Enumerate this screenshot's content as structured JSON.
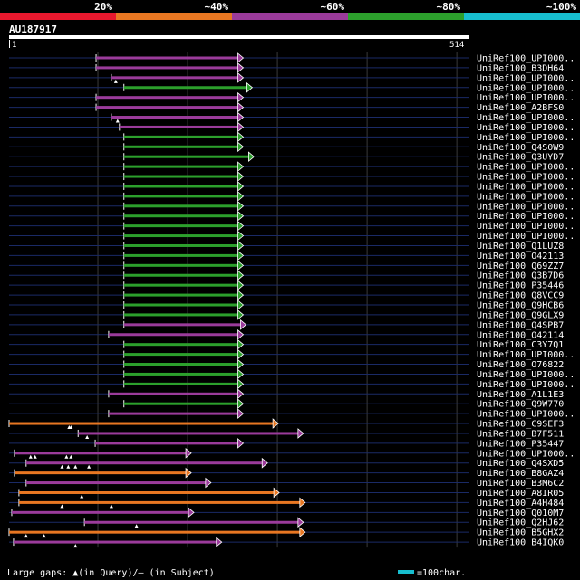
{
  "legend": {
    "bands": [
      {
        "label": "20%",
        "color": "#e8182e"
      },
      {
        "label": "~40%",
        "color": "#e87722"
      },
      {
        "label": "~60%",
        "color": "#9b3b9b"
      },
      {
        "label": "~80%",
        "color": "#2ca02c"
      },
      {
        "label": "~100%",
        "color": "#17becf"
      }
    ]
  },
  "query": {
    "name": "AU187917",
    "start_label": "1",
    "end_label": "514",
    "length": 514
  },
  "footer": {
    "gaps_text": "Large gaps: ▲(in Query)/– (in Subject)",
    "scale_text": "=100char.",
    "scale_color": "#17becf"
  },
  "colors": {
    "magenta": "#9b3b9b",
    "green": "#2ca02c",
    "orange": "#e87722",
    "track": "#1a2a66",
    "grid": "#3a3a3a"
  },
  "hits": [
    {
      "label": "UniRef100_UPI000..",
      "start": 98,
      "end": 256,
      "color": "magenta",
      "tri": []
    },
    {
      "label": "UniRef100_B3DH64",
      "start": 98,
      "end": 256,
      "color": "magenta",
      "tri": []
    },
    {
      "label": "UniRef100_UPI000..",
      "start": 115,
      "end": 256,
      "color": "magenta",
      "tri": [
        120
      ]
    },
    {
      "label": "UniRef100_UPI000..",
      "start": 129,
      "end": 266,
      "color": "green",
      "tri": []
    },
    {
      "label": "UniRef100_UPI000..",
      "start": 98,
      "end": 256,
      "color": "magenta",
      "tri": []
    },
    {
      "label": "UniRef100_A2BFS0",
      "start": 98,
      "end": 256,
      "color": "magenta",
      "tri": []
    },
    {
      "label": "UniRef100_UPI000..",
      "start": 115,
      "end": 256,
      "color": "magenta",
      "tri": [
        122
      ]
    },
    {
      "label": "UniRef100_UPI000..",
      "start": 124,
      "end": 256,
      "color": "magenta",
      "tri": []
    },
    {
      "label": "UniRef100_UPI000..",
      "start": 129,
      "end": 256,
      "color": "green",
      "tri": []
    },
    {
      "label": "UniRef100_Q4S0W9",
      "start": 129,
      "end": 256,
      "color": "green",
      "tri": []
    },
    {
      "label": "UniRef100_Q3UYD7",
      "start": 129,
      "end": 268,
      "color": "green",
      "tri": []
    },
    {
      "label": "UniRef100_UPI000..",
      "start": 129,
      "end": 256,
      "color": "green",
      "tri": []
    },
    {
      "label": "UniRef100_UPI000..",
      "start": 129,
      "end": 256,
      "color": "green",
      "tri": []
    },
    {
      "label": "UniRef100_UPI000..",
      "start": 129,
      "end": 256,
      "color": "green",
      "tri": []
    },
    {
      "label": "UniRef100_UPI000..",
      "start": 129,
      "end": 256,
      "color": "green",
      "tri": []
    },
    {
      "label": "UniRef100_UPI000..",
      "start": 129,
      "end": 256,
      "color": "green",
      "tri": []
    },
    {
      "label": "UniRef100_UPI000..",
      "start": 129,
      "end": 256,
      "color": "green",
      "tri": []
    },
    {
      "label": "UniRef100_UPI000..",
      "start": 129,
      "end": 256,
      "color": "green",
      "tri": []
    },
    {
      "label": "UniRef100_UPI000..",
      "start": 129,
      "end": 256,
      "color": "green",
      "tri": []
    },
    {
      "label": "UniRef100_Q1LUZ8",
      "start": 129,
      "end": 256,
      "color": "green",
      "tri": []
    },
    {
      "label": "UniRef100_O42113",
      "start": 129,
      "end": 256,
      "color": "green",
      "tri": []
    },
    {
      "label": "UniRef100_Q69ZZ7",
      "start": 129,
      "end": 256,
      "color": "green",
      "tri": []
    },
    {
      "label": "UniRef100_Q3B7D6",
      "start": 129,
      "end": 256,
      "color": "green",
      "tri": []
    },
    {
      "label": "UniRef100_P35446",
      "start": 129,
      "end": 256,
      "color": "green",
      "tri": []
    },
    {
      "label": "UniRef100_Q8VCC9",
      "start": 129,
      "end": 256,
      "color": "green",
      "tri": []
    },
    {
      "label": "UniRef100_Q9HCB6",
      "start": 129,
      "end": 256,
      "color": "green",
      "tri": []
    },
    {
      "label": "UniRef100_Q9GLX9",
      "start": 129,
      "end": 256,
      "color": "green",
      "tri": []
    },
    {
      "label": "UniRef100_Q4SPB7",
      "start": 129,
      "end": 259,
      "color": "magenta",
      "tri": []
    },
    {
      "label": "UniRef100_O42114",
      "start": 112,
      "end": 256,
      "color": "magenta",
      "tri": []
    },
    {
      "label": "UniRef100_C3Y7Q1",
      "start": 129,
      "end": 256,
      "color": "green",
      "tri": []
    },
    {
      "label": "UniRef100_UPI000..",
      "start": 129,
      "end": 256,
      "color": "green",
      "tri": []
    },
    {
      "label": "UniRef100_O76822",
      "start": 129,
      "end": 256,
      "color": "green",
      "tri": []
    },
    {
      "label": "UniRef100_UPI000..",
      "start": 129,
      "end": 256,
      "color": "green",
      "tri": []
    },
    {
      "label": "UniRef100_UPI000..",
      "start": 129,
      "end": 256,
      "color": "green",
      "tri": []
    },
    {
      "label": "UniRef100_A1L1E3",
      "start": 112,
      "end": 256,
      "color": "magenta",
      "tri": []
    },
    {
      "label": "UniRef100_Q9W770",
      "start": 129,
      "end": 256,
      "color": "green",
      "tri": []
    },
    {
      "label": "UniRef100_UPI000..",
      "start": 112,
      "end": 256,
      "color": "magenta",
      "tri": []
    },
    {
      "label": "UniRef100_C9SEF3",
      "start": 1,
      "end": 295,
      "color": "orange",
      "tri": [
        68,
        70
      ]
    },
    {
      "label": "UniRef100_B7F511",
      "start": 78,
      "end": 323,
      "color": "magenta",
      "tri": [
        88
      ]
    },
    {
      "label": "UniRef100_P35447",
      "start": 97,
      "end": 256,
      "color": "magenta",
      "tri": []
    },
    {
      "label": "UniRef100_UPI000..",
      "start": 7,
      "end": 198,
      "color": "magenta",
      "tri": [
        25,
        30,
        65,
        70
      ]
    },
    {
      "label": "UniRef100_Q4SXD5",
      "start": 20,
      "end": 283,
      "color": "magenta",
      "tri": [
        60,
        67,
        75,
        90
      ]
    },
    {
      "label": "UniRef100_B8GAZ4",
      "start": 7,
      "end": 198,
      "color": "orange",
      "tri": []
    },
    {
      "label": "UniRef100_B3M6C2",
      "start": 20,
      "end": 220,
      "color": "magenta",
      "tri": []
    },
    {
      "label": "UniRef100_A8IR05",
      "start": 12,
      "end": 296,
      "color": "orange",
      "tri": [
        82
      ]
    },
    {
      "label": "UniRef100_A4H484",
      "start": 12,
      "end": 325,
      "color": "orange",
      "tri": [
        60,
        115
      ]
    },
    {
      "label": "UniRef100_Q010M7",
      "start": 4,
      "end": 201,
      "color": "magenta",
      "tri": []
    },
    {
      "label": "UniRef100_Q2HJ62",
      "start": 85,
      "end": 323,
      "color": "magenta",
      "tri": [
        143
      ]
    },
    {
      "label": "UniRef100_B5GHX2",
      "start": 1,
      "end": 325,
      "color": "orange",
      "tri": [
        20,
        40
      ]
    },
    {
      "label": "UniRef100_B4IQK0",
      "start": 6,
      "end": 232,
      "color": "magenta",
      "tri": [
        75
      ]
    }
  ]
}
